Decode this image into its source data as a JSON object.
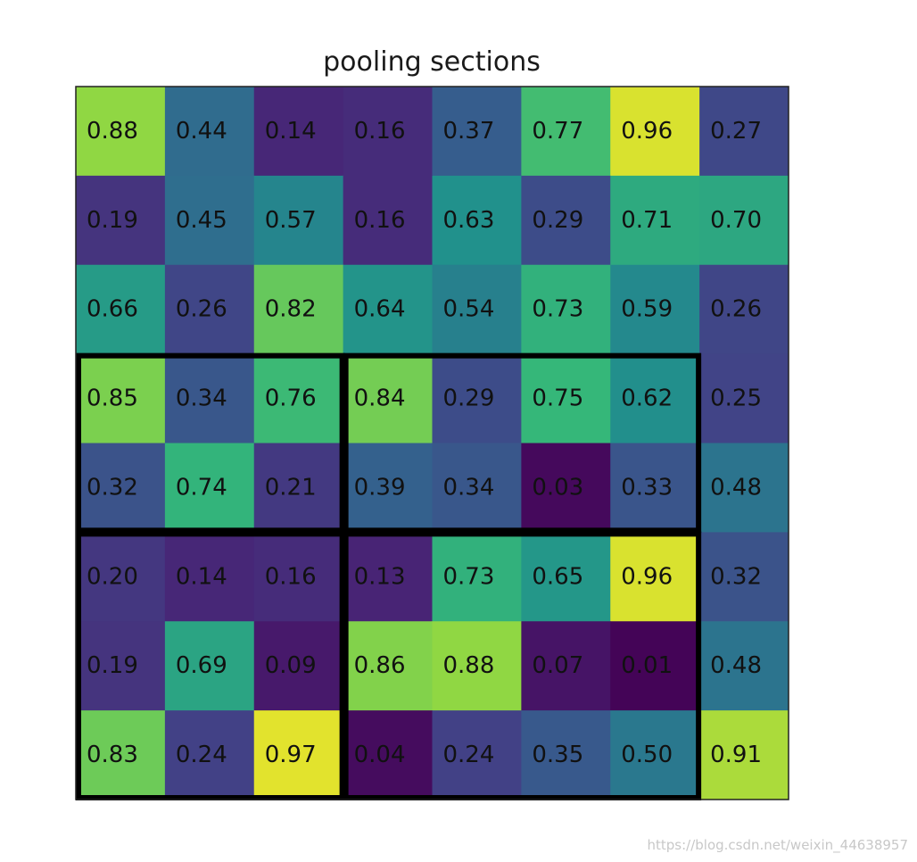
{
  "chart_data": {
    "type": "heatmap",
    "title": "pooling sections",
    "colormap": "viridis",
    "value_range": [
      0,
      1
    ],
    "rows": [
      [
        0.88,
        0.44,
        0.14,
        0.16,
        0.37,
        0.77,
        0.96,
        0.27
      ],
      [
        0.19,
        0.45,
        0.57,
        0.16,
        0.63,
        0.29,
        0.71,
        0.7
      ],
      [
        0.66,
        0.26,
        0.82,
        0.64,
        0.54,
        0.73,
        0.59,
        0.26
      ],
      [
        0.85,
        0.34,
        0.76,
        0.84,
        0.29,
        0.75,
        0.62,
        0.25
      ],
      [
        0.32,
        0.74,
        0.21,
        0.39,
        0.34,
        0.03,
        0.33,
        0.48
      ],
      [
        0.2,
        0.14,
        0.16,
        0.13,
        0.73,
        0.65,
        0.96,
        0.32
      ],
      [
        0.19,
        0.69,
        0.09,
        0.86,
        0.88,
        0.07,
        0.01,
        0.48
      ],
      [
        0.83,
        0.24,
        0.97,
        0.04,
        0.24,
        0.35,
        0.5,
        0.91
      ]
    ],
    "pooling_sections": [
      {
        "row_start": 3,
        "row_end": 4,
        "col_start": 0,
        "col_end": 2
      },
      {
        "row_start": 3,
        "row_end": 4,
        "col_start": 3,
        "col_end": 6
      },
      {
        "row_start": 5,
        "row_end": 7,
        "col_start": 0,
        "col_end": 2
      },
      {
        "row_start": 5,
        "row_end": 7,
        "col_start": 3,
        "col_end": 6
      }
    ],
    "value_format": 2
  },
  "watermark": "https://blog.csdn.net/weixin_44638957"
}
